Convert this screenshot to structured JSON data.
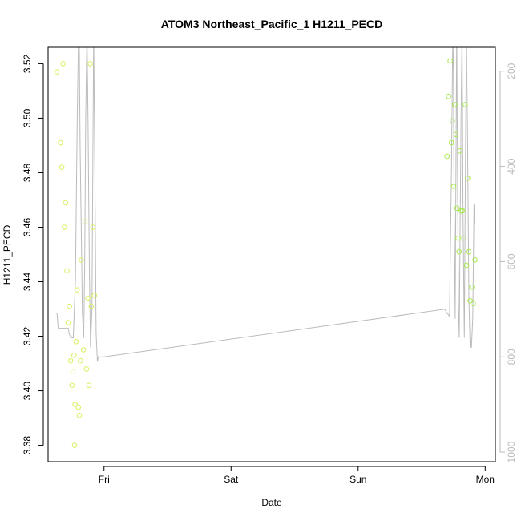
{
  "chart_data": {
    "type": "scatter",
    "title": "ATOM3 Northeast_Pacific_1 H1211_PECD",
    "xlabel": "Date",
    "ylabel": "H1211_PECD",
    "x_units": "days since Thursday 00:00",
    "xlim": [
      0.56,
      4.08
    ],
    "x_ticks": [
      {
        "value": 1,
        "label": "Fri"
      },
      {
        "value": 2,
        "label": "Sat"
      },
      {
        "value": 3,
        "label": "Sun"
      },
      {
        "value": 4,
        "label": "Mon"
      }
    ],
    "ylim": [
      3.374,
      3.526
    ],
    "y_ticks": [
      3.38,
      3.4,
      3.42,
      3.44,
      3.46,
      3.48,
      3.5,
      3.52
    ],
    "y2": {
      "label": "",
      "reversed": true,
      "lim": [
        1020,
        150
      ],
      "ticks": [
        200,
        400,
        600,
        800,
        1000
      ],
      "color": "#bbbbbb"
    },
    "colors": {
      "points_early": "#d8f060",
      "points_late": "#a8e850",
      "altitude_line": "#bbbbbb",
      "axes": "#000000"
    },
    "grid": false,
    "series": [
      {
        "role": "points",
        "points": [
          [
            0.628,
            3.517
          ],
          [
            0.658,
            3.491
          ],
          [
            0.668,
            3.482
          ],
          [
            0.678,
            3.52
          ],
          [
            0.688,
            3.46
          ],
          [
            0.698,
            3.469
          ],
          [
            0.708,
            3.444
          ],
          [
            0.718,
            3.425
          ],
          [
            0.728,
            3.431
          ],
          [
            0.738,
            3.411
          ],
          [
            0.748,
            3.402
          ],
          [
            0.756,
            3.407
          ],
          [
            0.764,
            3.413
          ],
          [
            0.772,
            3.395
          ],
          [
            0.78,
            3.418
          ],
          [
            0.788,
            3.437
          ],
          [
            0.798,
            3.394
          ],
          [
            0.806,
            3.391
          ],
          [
            0.814,
            3.411
          ],
          [
            0.822,
            3.448
          ],
          [
            0.838,
            3.415
          ],
          [
            0.85,
            3.462
          ],
          [
            0.862,
            3.408
          ],
          [
            0.872,
            3.434
          ],
          [
            0.882,
            3.402
          ],
          [
            0.892,
            3.52
          ],
          [
            0.9,
            3.431
          ],
          [
            0.912,
            3.46
          ],
          [
            0.925,
            3.435
          ],
          [
            0.768,
            3.38
          ],
          [
            3.7,
            3.486
          ],
          [
            3.712,
            3.508
          ],
          [
            3.724,
            3.521
          ],
          [
            3.734,
            3.491
          ],
          [
            3.742,
            3.499
          ],
          [
            3.752,
            3.475
          ],
          [
            3.76,
            3.505
          ],
          [
            3.77,
            3.494
          ],
          [
            3.778,
            3.467
          ],
          [
            3.786,
            3.456
          ],
          [
            3.794,
            3.451
          ],
          [
            3.802,
            3.488
          ],
          [
            3.812,
            3.466
          ],
          [
            3.822,
            3.466
          ],
          [
            3.832,
            3.456
          ],
          [
            3.842,
            3.505
          ],
          [
            3.852,
            3.446
          ],
          [
            3.862,
            3.478
          ],
          [
            3.872,
            3.451
          ],
          [
            3.882,
            3.433
          ],
          [
            3.894,
            3.438
          ],
          [
            3.906,
            3.432
          ],
          [
            3.92,
            3.448
          ]
        ]
      },
      {
        "role": "altitude_line",
        "axis": "y2",
        "points": [
          [
            0.617,
            708
          ],
          [
            0.63,
            708
          ],
          [
            0.64,
            740
          ],
          [
            0.72,
            740
          ],
          [
            0.726,
            752
          ],
          [
            0.74,
            760
          ],
          [
            0.758,
            760
          ],
          [
            0.775,
            640
          ],
          [
            0.79,
            280
          ],
          [
            0.8,
            120
          ],
          [
            0.805,
            120
          ],
          [
            0.812,
            350
          ],
          [
            0.83,
            710
          ],
          [
            0.84,
            760
          ],
          [
            0.848,
            600
          ],
          [
            0.856,
            300
          ],
          [
            0.866,
            120
          ],
          [
            0.874,
            300
          ],
          [
            0.884,
            600
          ],
          [
            0.894,
            780
          ],
          [
            0.905,
            700
          ],
          [
            0.912,
            400
          ],
          [
            0.918,
            120
          ],
          [
            0.928,
            400
          ],
          [
            0.938,
            750
          ],
          [
            0.948,
            810
          ],
          [
            0.955,
            800
          ],
          [
            1.0,
            800
          ],
          [
            3.68,
            700
          ],
          [
            3.72,
            715
          ],
          [
            3.725,
            600
          ],
          [
            3.735,
            400
          ],
          [
            3.745,
            120
          ],
          [
            3.75,
            200
          ],
          [
            3.756,
            500
          ],
          [
            3.764,
            720
          ],
          [
            3.77,
            400
          ],
          [
            3.776,
            120
          ],
          [
            3.782,
            400
          ],
          [
            3.79,
            700
          ],
          [
            3.796,
            760
          ],
          [
            3.802,
            560
          ],
          [
            3.81,
            300
          ],
          [
            3.818,
            120
          ],
          [
            3.826,
            500
          ],
          [
            3.836,
            760
          ],
          [
            3.842,
            500
          ],
          [
            3.852,
            120
          ],
          [
            3.862,
            350
          ],
          [
            3.872,
            680
          ],
          [
            3.882,
            780
          ],
          [
            3.892,
            780
          ],
          [
            3.902,
            720
          ],
          [
            3.912,
            480
          ],
          [
            3.918,
            520
          ]
        ]
      }
    ]
  }
}
